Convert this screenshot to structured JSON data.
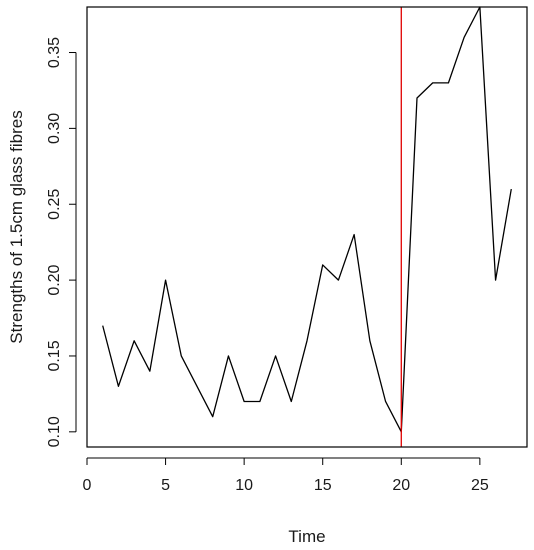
{
  "chart_data": {
    "type": "line",
    "title": "",
    "xlabel": "Time",
    "ylabel": "Strengths of 1.5cm glass fibres",
    "xlim": [
      0.0,
      28.0
    ],
    "ylim": [
      0.09,
      0.38
    ],
    "x_ticks": [
      0,
      5,
      10,
      15,
      20,
      25
    ],
    "y_ticks": [
      0.1,
      0.15,
      0.2,
      0.25,
      0.3,
      0.35
    ],
    "x_tick_labels": [
      "0",
      "5",
      "10",
      "15",
      "20",
      "25"
    ],
    "y_tick_labels": [
      "0.10",
      "0.15",
      "0.20",
      "0.25",
      "0.30",
      "0.35"
    ],
    "grid": false,
    "legend": "none",
    "series": [
      {
        "color": "#000000",
        "x": [
          1,
          2,
          3,
          4,
          5,
          6,
          7,
          8,
          9,
          10,
          11,
          12,
          13,
          14,
          15,
          16,
          17,
          18,
          19,
          20,
          21,
          22,
          23,
          24,
          25,
          26,
          27
        ],
        "values": [
          0.17,
          0.13,
          0.16,
          0.14,
          0.2,
          0.15,
          0.13,
          0.11,
          0.15,
          0.12,
          0.12,
          0.15,
          0.12,
          0.16,
          0.21,
          0.2,
          0.23,
          0.16,
          0.12,
          0.1,
          0.32,
          0.33,
          0.33,
          0.36,
          0.38,
          0.2,
          0.26
        ]
      }
    ],
    "vertical_lines": [
      {
        "x": 20,
        "color": "#e00000"
      }
    ]
  }
}
